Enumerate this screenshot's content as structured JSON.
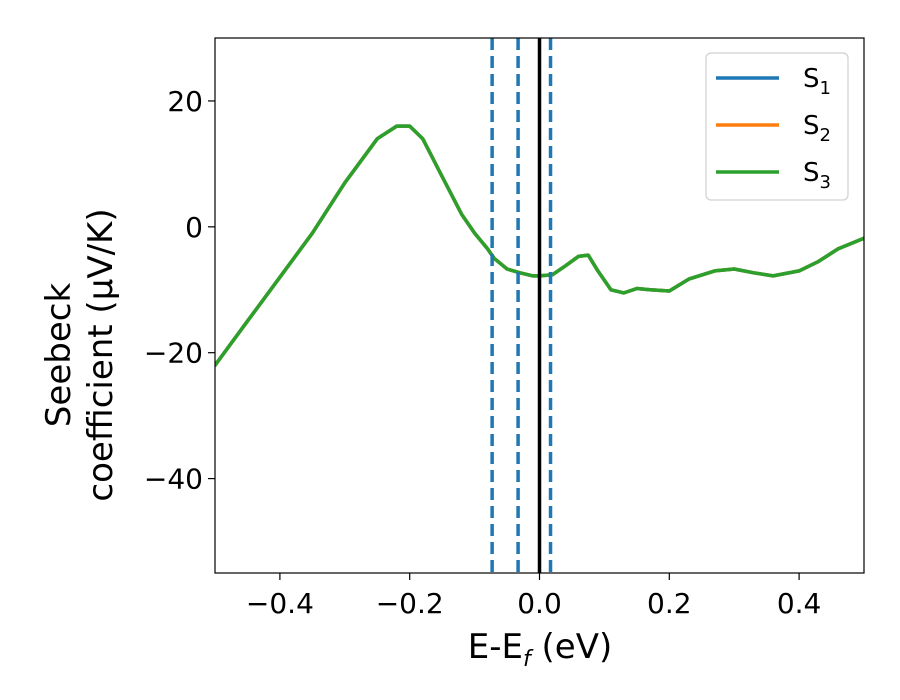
{
  "chart_data": {
    "type": "line",
    "title": "",
    "xlabel": {
      "main": "E-E",
      "sub": "f",
      "suffix": " (eV)"
    },
    "ylabel": {
      "line1": "Seebeck",
      "line2": "coefficient  (μV/K)"
    },
    "xlim": [
      -0.5,
      0.5
    ],
    "ylim": [
      -55,
      30
    ],
    "xticks": [
      {
        "value": -0.4,
        "label": "−0.4"
      },
      {
        "value": -0.2,
        "label": "−0.2"
      },
      {
        "value": 0.0,
        "label": "0.0"
      },
      {
        "value": 0.2,
        "label": "0.2"
      },
      {
        "value": 0.4,
        "label": "0.4"
      }
    ],
    "yticks": [
      {
        "value": 20,
        "label": "20"
      },
      {
        "value": 0,
        "label": "0"
      },
      {
        "value": -20,
        "label": "−20"
      },
      {
        "value": -40,
        "label": "−40"
      }
    ],
    "legend_position": "top-right",
    "grid": false,
    "x": [
      -0.5,
      -0.45,
      -0.4,
      -0.35,
      -0.3,
      -0.25,
      -0.22,
      -0.2,
      -0.18,
      -0.15,
      -0.12,
      -0.1,
      -0.08,
      -0.07,
      -0.05,
      -0.03,
      -0.01,
      0.0,
      0.02,
      0.04,
      0.06,
      0.075,
      0.09,
      0.11,
      0.13,
      0.15,
      0.17,
      0.2,
      0.23,
      0.27,
      0.3,
      0.33,
      0.36,
      0.4,
      0.43,
      0.46,
      0.5
    ],
    "series": [
      {
        "name": "S",
        "subscript": "1",
        "color": "#1f77b4",
        "values": [
          -22,
          -15,
          -8,
          -1,
          7,
          14,
          16,
          16,
          14,
          8,
          2,
          -1,
          -3.5,
          -5,
          -6.7,
          -7.3,
          -7.8,
          -7.8,
          -7.6,
          -6.2,
          -4.7,
          -4.5,
          -7,
          -10,
          -10.5,
          -9.8,
          -10,
          -10.2,
          -8.3,
          -7.0,
          -6.7,
          -7.3,
          -7.8,
          -7.0,
          -5.5,
          -3.5,
          -1.8
        ]
      },
      {
        "name": "S",
        "subscript": "2",
        "color": "#ff7f0e",
        "values": [
          -22,
          -15,
          -8,
          -1,
          7,
          14,
          16,
          16,
          14,
          8,
          2,
          -1,
          -3.5,
          -5,
          -6.7,
          -7.3,
          -7.8,
          -7.8,
          -7.6,
          -6.2,
          -4.7,
          -4.5,
          -7,
          -10,
          -10.5,
          -9.8,
          -10,
          -10.2,
          -8.3,
          -7.0,
          -6.7,
          -7.3,
          -7.8,
          -7.0,
          -5.5,
          -3.5,
          -1.8
        ]
      },
      {
        "name": "S",
        "subscript": "3",
        "color": "#2ca02c",
        "values": [
          -22,
          -15,
          -8,
          -1,
          7,
          14,
          16,
          16,
          14,
          8,
          2,
          -1,
          -3.5,
          -5,
          -6.7,
          -7.3,
          -7.8,
          -7.8,
          -7.6,
          -6.2,
          -4.7,
          -4.5,
          -7,
          -10,
          -10.5,
          -9.8,
          -10,
          -10.2,
          -8.3,
          -7.0,
          -6.7,
          -7.3,
          -7.8,
          -7.0,
          -5.5,
          -3.5,
          -1.8
        ]
      }
    ],
    "vlines": [
      {
        "x": -0.073,
        "style": "dashed",
        "color": "#1f77b4"
      },
      {
        "x": -0.033,
        "style": "dashed",
        "color": "#1f77b4"
      },
      {
        "x": 0.0,
        "style": "solid",
        "color": "#000000"
      },
      {
        "x": 0.017,
        "style": "dashed",
        "color": "#1f77b4"
      }
    ]
  }
}
